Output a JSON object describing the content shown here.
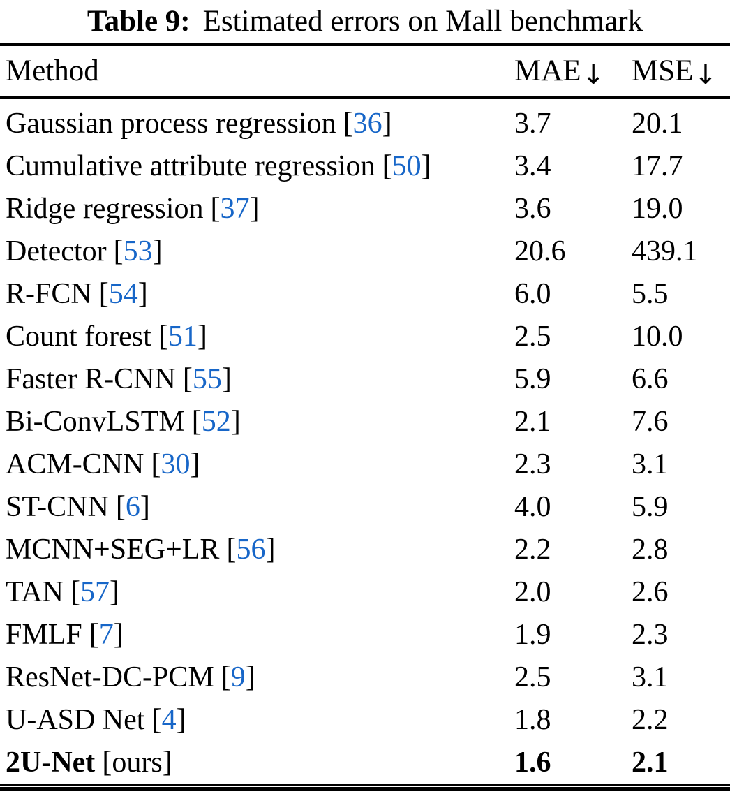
{
  "caption": {
    "label": "Table 9:",
    "title": "Estimated errors on Mall benchmark"
  },
  "header": {
    "method": "Method",
    "mae": "MAE",
    "mse": "MSE",
    "sort_arrow": "↓"
  },
  "brackets": {
    "open": "[",
    "close": "]"
  },
  "rows": [
    {
      "method": "Gaussian process regression",
      "ref": "36",
      "ref_link": true,
      "mae": "3.7",
      "mse": "20.1",
      "emphasis": false
    },
    {
      "method": "Cumulative attribute regression",
      "ref": "50",
      "ref_link": true,
      "mae": "3.4",
      "mse": "17.7",
      "emphasis": false
    },
    {
      "method": "Ridge regression",
      "ref": "37",
      "ref_link": true,
      "mae": "3.6",
      "mse": "19.0",
      "emphasis": false
    },
    {
      "method": "Detector",
      "ref": "53",
      "ref_link": true,
      "mae": "20.6",
      "mse": "439.1",
      "emphasis": false
    },
    {
      "method": "R-FCN",
      "ref": "54",
      "ref_link": true,
      "mae": "6.0",
      "mse": "5.5",
      "emphasis": false
    },
    {
      "method": "Count forest",
      "ref": "51",
      "ref_link": true,
      "mae": "2.5",
      "mse": "10.0",
      "emphasis": false
    },
    {
      "method": "Faster R-CNN",
      "ref": "55",
      "ref_link": true,
      "mae": "5.9",
      "mse": "6.6",
      "emphasis": false
    },
    {
      "method": "Bi-ConvLSTM",
      "ref": "52",
      "ref_link": true,
      "mae": "2.1",
      "mse": "7.6",
      "emphasis": false
    },
    {
      "method": "ACM-CNN",
      "ref": "30",
      "ref_link": true,
      "mae": "2.3",
      "mse": "3.1",
      "emphasis": false
    },
    {
      "method": "ST-CNN",
      "ref": "6",
      "ref_link": true,
      "mae": "4.0",
      "mse": "5.9",
      "emphasis": false
    },
    {
      "method": "MCNN+SEG+LR",
      "ref": "56",
      "ref_link": true,
      "mae": "2.2",
      "mse": "2.8",
      "emphasis": false
    },
    {
      "method": "TAN",
      "ref": "57",
      "ref_link": true,
      "mae": "2.0",
      "mse": "2.6",
      "emphasis": false
    },
    {
      "method": "FMLF",
      "ref": "7",
      "ref_link": true,
      "mae": "1.9",
      "mse": "2.3",
      "emphasis": false
    },
    {
      "method": "ResNet-DC-PCM",
      "ref": "9",
      "ref_link": true,
      "mae": "2.5",
      "mse": "3.1",
      "emphasis": false
    },
    {
      "method": "U-ASD Net",
      "ref": "4",
      "ref_link": true,
      "mae": "1.8",
      "mse": "2.2",
      "emphasis": false
    },
    {
      "method": "2U-Net",
      "ref": "ours",
      "ref_link": false,
      "mae": "1.6",
      "mse": "2.1",
      "emphasis": true
    }
  ],
  "colors": {
    "text": "#000000",
    "rule": "#000000",
    "reference_link": "#1766c8"
  }
}
